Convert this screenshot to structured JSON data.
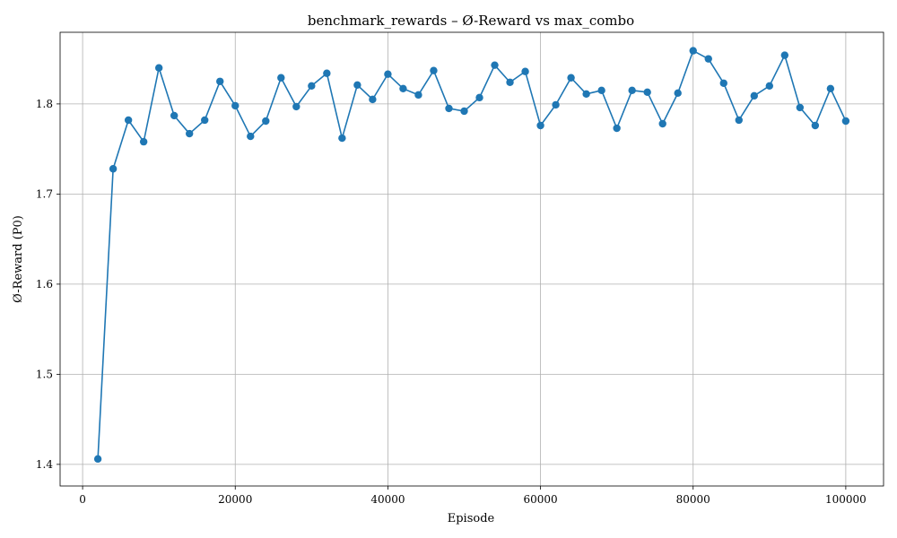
{
  "chart_data": {
    "type": "line",
    "title": "benchmark_rewards – Ø-Reward vs max_combo",
    "xlabel": "Episode",
    "ylabel": "Ø-Reward (P0)",
    "xlim": [
      -2950,
      104950
    ],
    "ylim": [
      1.376,
      1.8795
    ],
    "xticks": [
      0,
      20000,
      40000,
      60000,
      80000,
      100000
    ],
    "xtick_labels": [
      "0",
      "20000",
      "40000",
      "60000",
      "80000",
      "100000"
    ],
    "yticks": [
      1.4,
      1.5,
      1.6,
      1.7,
      1.8
    ],
    "ytick_labels": [
      "1.4",
      "1.5",
      "1.6",
      "1.7",
      "1.8"
    ],
    "grid": true,
    "markers": true,
    "series": [
      {
        "color": "#1f77b4",
        "x": [
          2000,
          4000,
          6000,
          8000,
          10000,
          12000,
          14000,
          16000,
          18000,
          20000,
          22000,
          24000,
          26000,
          28000,
          30000,
          32000,
          34000,
          36000,
          38000,
          40000,
          42000,
          44000,
          46000,
          48000,
          50000,
          52000,
          54000,
          56000,
          58000,
          60000,
          62000,
          64000,
          66000,
          68000,
          70000,
          72000,
          74000,
          76000,
          78000,
          80000,
          82000,
          84000,
          86000,
          88000,
          90000,
          92000,
          94000,
          96000,
          98000,
          100000
        ],
        "y": [
          1.406,
          1.728,
          1.782,
          1.758,
          1.84,
          1.787,
          1.767,
          1.782,
          1.825,
          1.798,
          1.764,
          1.781,
          1.829,
          1.797,
          1.82,
          1.834,
          1.762,
          1.821,
          1.805,
          1.833,
          1.817,
          1.81,
          1.837,
          1.795,
          1.792,
          1.807,
          1.843,
          1.824,
          1.836,
          1.776,
          1.799,
          1.829,
          1.811,
          1.815,
          1.773,
          1.815,
          1.813,
          1.778,
          1.812,
          1.859,
          1.85,
          1.823,
          1.782,
          1.809,
          1.82,
          1.854,
          1.796,
          1.776,
          1.817,
          1.781
        ]
      }
    ]
  }
}
